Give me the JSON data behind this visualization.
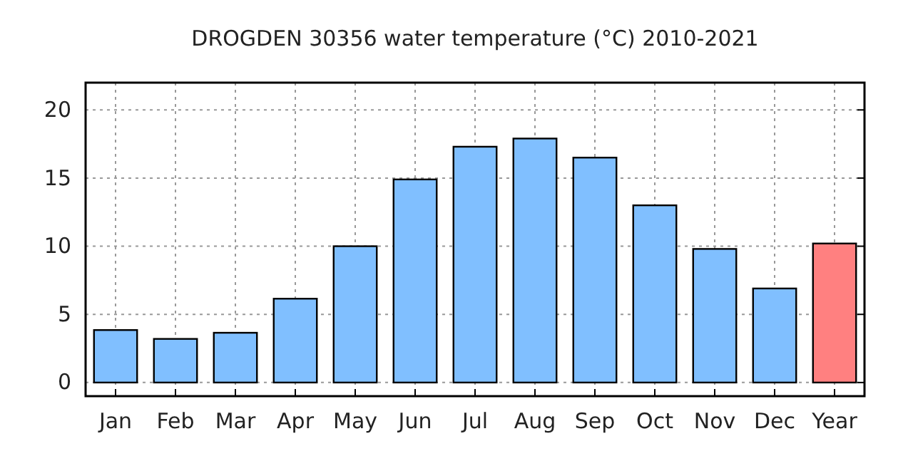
{
  "chart_data": {
    "type": "bar",
    "title": "DROGDEN 30356 water temperature (°C) 2010-2021",
    "categories": [
      "Jan",
      "Feb",
      "Mar",
      "Apr",
      "May",
      "Jun",
      "Jul",
      "Aug",
      "Sep",
      "Oct",
      "Nov",
      "Dec",
      "Year"
    ],
    "values": [
      3.85,
      3.2,
      3.65,
      6.15,
      10.0,
      14.9,
      17.3,
      17.9,
      16.5,
      13.0,
      9.8,
      6.9,
      10.2
    ],
    "colors": [
      "#80bfff",
      "#80bfff",
      "#80bfff",
      "#80bfff",
      "#80bfff",
      "#80bfff",
      "#80bfff",
      "#80bfff",
      "#80bfff",
      "#80bfff",
      "#80bfff",
      "#80bfff",
      "#ff8080"
    ],
    "ylim": [
      -1,
      22
    ],
    "yticks": [
      0,
      5,
      10,
      15,
      20
    ],
    "grid": true
  }
}
